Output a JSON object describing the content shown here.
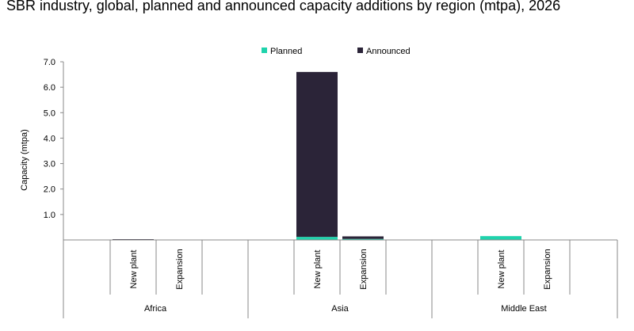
{
  "chart_data": {
    "type": "bar",
    "stacked": true,
    "title": "SBR industry, global, planned and announced capacity additions by region (mtpa), 2026",
    "ylabel": "Capacity (mtpa)",
    "xlabel": "",
    "ylim": [
      0,
      7
    ],
    "yticks": [
      "1.0",
      "2.0",
      "3.0",
      "4.0",
      "5.0",
      "6.0",
      "7.0"
    ],
    "legend_position": "top",
    "groups": [
      {
        "name": "Africa",
        "categories": [
          "New plant",
          "Expansion"
        ]
      },
      {
        "name": "Asia",
        "categories": [
          "New plant",
          "Expansion"
        ]
      },
      {
        "name": "Middle East",
        "categories": [
          "New plant",
          "Expansion"
        ]
      }
    ],
    "series": [
      {
        "name": "Planned",
        "color": "#1fd3ac",
        "values": [
          0,
          0,
          0.12,
          0.04,
          0.15,
          0
        ]
      },
      {
        "name": "Announced",
        "color": "#2b2438",
        "values": [
          0.03,
          0,
          6.48,
          0.1,
          0,
          0
        ]
      }
    ]
  }
}
